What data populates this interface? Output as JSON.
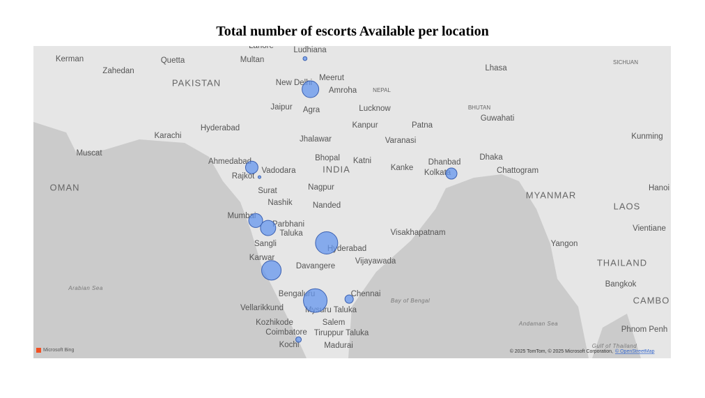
{
  "chart_data": {
    "type": "bubble-map",
    "title": "Total number of escorts Available per location",
    "color": "#6495ed",
    "lon": [
      77.21,
      76.78,
      72.57,
      73.18,
      88.36,
      72.88,
      73.86,
      78.49,
      74.12,
      77.59,
      80.27,
      76.27
    ],
    "lat": [
      28.61,
      30.73,
      23.02,
      22.31,
      22.57,
      19.08,
      18.52,
      17.39,
      15.3,
      12.97,
      13.08,
      9.93
    ],
    "values": [
      36,
      2,
      20,
      1,
      16,
      25,
      30,
      64,
      49,
      72,
      9,
      4
    ]
  },
  "map_labels": [
    "PAKISTAN",
    "INDIA",
    "OMAN",
    "MYANMAR",
    "LAOS",
    "THAILAND",
    "NEPAL",
    "BHUTAN",
    "CAMBO",
    "Kerman",
    "Quetta",
    "Zahedan",
    "Lahore",
    "Ludhiana",
    "Multan",
    "New Delhi",
    "Meerut",
    "Jaipur",
    "Agra",
    "Amroha",
    "Lucknow",
    "Kanpur",
    "Patna",
    "Hyderabad",
    "Karachi",
    "Jhalawar",
    "Varanasi",
    "Guwahati",
    "Ahmedabad",
    "Rajkot",
    "Vadodara",
    "Bhopal",
    "Katni",
    "Kanke",
    "Dhanbad",
    "Kolkata",
    "Dhaka",
    "Chattogram",
    "Muscat",
    "Surat",
    "Nagpur",
    "Nashik",
    "Nanded",
    "Mumbai",
    "Parbhani",
    "Taluka",
    "Visakhapatnam",
    "Sangli",
    "Hyderabad",
    "Yangon",
    "Vijayawada",
    "Karwar",
    "Davangere",
    "Vientiane",
    "Bangkok",
    "Bengaluru",
    "Chennai",
    "Vellarikkund",
    "Mysuru Taluka",
    "Kozhikode",
    "Salem",
    "Coimbatore",
    "Tiruppur Taluka",
    "Kochi",
    "Madurai",
    "Phnom Penh",
    "Arabian Sea",
    "Bay of Bengal",
    "Andaman Sea",
    "Gulf of Thailand",
    "Hanoi",
    "Kunming",
    "SICHUAN",
    "Lhasa"
  ],
  "attribution": {
    "bing": "Microsoft Bing",
    "text": "© 2025 TomTom, © 2025 Microsoft Corporation,",
    "link": "© OpenStreetMap"
  }
}
